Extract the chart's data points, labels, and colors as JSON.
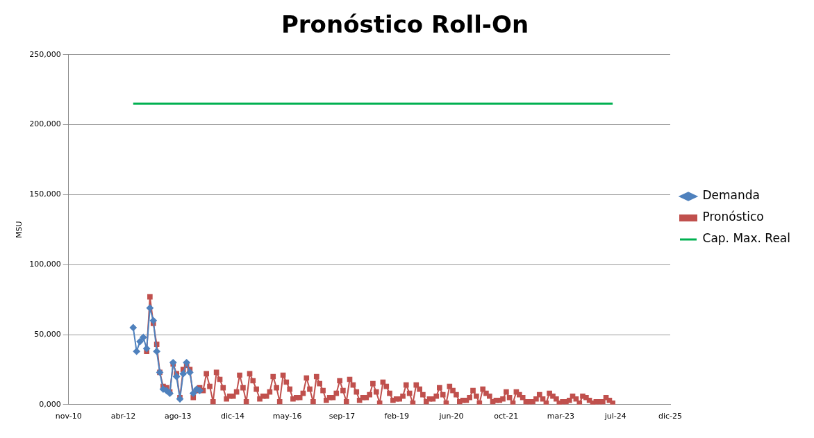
{
  "chart_data": {
    "type": "line",
    "title": "Pronóstico Roll-On",
    "ylabel": "MSU",
    "xlim": [
      "2010-11-18",
      "2025-12-09"
    ],
    "xticks": [
      {
        "value": "2010-11-18",
        "label": "nov-10"
      },
      {
        "value": "2012-04-01",
        "label": "abr-12"
      },
      {
        "value": "2013-08-14",
        "label": "ago-13"
      },
      {
        "value": "2014-12-27",
        "label": "dic-14"
      },
      {
        "value": "2016-05-10",
        "label": "may-16"
      },
      {
        "value": "2017-09-22",
        "label": "sep-17"
      },
      {
        "value": "2019-02-04",
        "label": "feb-19"
      },
      {
        "value": "2020-06-18",
        "label": "jun-20"
      },
      {
        "value": "2021-10-31",
        "label": "oct-21"
      },
      {
        "value": "2023-03-15",
        "label": "mar-23"
      },
      {
        "value": "2024-07-27",
        "label": "jul-24"
      },
      {
        "value": "2025-12-09",
        "label": "dic-25"
      }
    ],
    "ylim": [
      0,
      250000
    ],
    "yticks": [
      {
        "value": 0,
        "label": "0,000"
      },
      {
        "value": 50000,
        "label": "50,000"
      },
      {
        "value": 100000,
        "label": "100,000"
      },
      {
        "value": 150000,
        "label": "150,000"
      },
      {
        "value": 200000,
        "label": "200,000"
      },
      {
        "value": 250000,
        "label": "250,000"
      }
    ],
    "grid": "y",
    "legend": "right",
    "series": [
      {
        "name": "Demanda",
        "color": "#4f81bd",
        "marker": "diamond",
        "x": [
          "2012-07",
          "2012-08",
          "2012-09",
          "2012-10",
          "2012-11",
          "2012-12",
          "2013-01",
          "2013-02",
          "2013-03",
          "2013-04",
          "2013-05",
          "2013-06",
          "2013-07",
          "2013-08",
          "2013-09",
          "2013-10",
          "2013-11",
          "2013-12",
          "2014-01",
          "2014-02",
          "2014-03"
        ],
        "values": [
          55000,
          38000,
          45000,
          48000,
          40000,
          69000,
          60000,
          38000,
          23000,
          11000,
          10000,
          8000,
          30000,
          20000,
          4000,
          22000,
          30000,
          23000,
          8000,
          11000,
          10000
        ]
      },
      {
        "name": "Pronóstico",
        "color": "#c0504d",
        "marker": "square",
        "x": [
          "2012-11",
          "2012-12",
          "2013-01",
          "2013-02",
          "2013-03",
          "2013-04",
          "2013-05",
          "2013-06",
          "2013-07",
          "2013-08",
          "2013-09",
          "2013-10",
          "2013-11",
          "2013-12",
          "2014-01",
          "2014-02",
          "2014-03",
          "2014-04",
          "2014-05",
          "2014-06",
          "2014-07",
          "2014-08",
          "2014-09",
          "2014-10",
          "2014-11",
          "2014-12",
          "2015-01",
          "2015-02",
          "2015-03",
          "2015-04",
          "2015-05",
          "2015-06",
          "2015-07",
          "2015-08",
          "2015-09",
          "2015-10",
          "2015-11",
          "2015-12",
          "2016-01",
          "2016-02",
          "2016-03",
          "2016-04",
          "2016-05",
          "2016-06",
          "2016-07",
          "2016-08",
          "2016-09",
          "2016-10",
          "2016-11",
          "2016-12",
          "2017-01",
          "2017-02",
          "2017-03",
          "2017-04",
          "2017-05",
          "2017-06",
          "2017-07",
          "2017-08",
          "2017-09",
          "2017-10",
          "2017-11",
          "2017-12",
          "2018-01",
          "2018-02",
          "2018-03",
          "2018-04",
          "2018-05",
          "2018-06",
          "2018-07",
          "2018-08",
          "2018-09",
          "2018-10",
          "2018-11",
          "2018-12",
          "2019-01",
          "2019-02",
          "2019-03",
          "2019-04",
          "2019-05",
          "2019-06",
          "2019-07",
          "2019-08",
          "2019-09",
          "2019-10",
          "2019-11",
          "2019-12",
          "2020-01",
          "2020-02",
          "2020-03",
          "2020-04",
          "2020-05",
          "2020-06",
          "2020-07",
          "2020-08",
          "2020-09",
          "2020-10",
          "2020-11",
          "2020-12",
          "2021-01",
          "2021-02",
          "2021-03",
          "2021-04",
          "2021-05",
          "2021-06",
          "2021-07",
          "2021-08",
          "2021-09",
          "2021-10",
          "2021-11",
          "2021-12",
          "2022-01",
          "2022-02",
          "2022-03",
          "2022-04",
          "2022-05",
          "2022-06",
          "2022-07",
          "2022-08",
          "2022-09",
          "2022-10",
          "2022-11",
          "2022-12",
          "2023-01",
          "2023-02",
          "2023-03",
          "2023-04",
          "2023-05",
          "2023-06",
          "2023-07",
          "2023-08",
          "2023-09",
          "2023-10",
          "2023-11",
          "2023-12",
          "2024-01",
          "2024-02",
          "2024-03",
          "2024-04",
          "2024-05",
          "2024-06",
          "2024-07"
        ],
        "values": [
          38000,
          77000,
          58000,
          43000,
          23000,
          13000,
          12000,
          9000,
          29000,
          22000,
          5000,
          25000,
          28000,
          25000,
          5000,
          10000,
          12000,
          10000,
          22000,
          13000,
          2000,
          23000,
          18000,
          12000,
          4000,
          6000,
          6000,
          9000,
          21000,
          12000,
          2000,
          22000,
          17000,
          11000,
          4000,
          6000,
          6000,
          9000,
          20000,
          12000,
          2000,
          21000,
          16000,
          11000,
          4000,
          5000,
          5000,
          8000,
          19000,
          11000,
          2000,
          20000,
          15000,
          10000,
          3000,
          5000,
          5000,
          8000,
          17000,
          10000,
          2000,
          18000,
          14000,
          9000,
          3000,
          5000,
          5000,
          7000,
          15000,
          9000,
          1000,
          16000,
          13000,
          8000,
          3000,
          4000,
          4000,
          6000,
          14000,
          8000,
          1000,
          14000,
          11000,
          7000,
          2000,
          4000,
          4000,
          6000,
          12000,
          7000,
          1000,
          13000,
          10000,
          7000,
          2000,
          3000,
          3000,
          5000,
          10000,
          6000,
          1000,
          11000,
          8000,
          6000,
          2000,
          3000,
          3000,
          4000,
          9000,
          5000,
          1000,
          9000,
          7000,
          5000,
          2000,
          2000,
          2000,
          4000,
          7000,
          4000,
          1000,
          8000,
          6000,
          4000,
          1000,
          2000,
          2000,
          3000,
          6000,
          4000,
          1000,
          6000,
          5000,
          3000,
          1000,
          2000,
          2000,
          2000,
          5000,
          3000,
          1000
        ]
      },
      {
        "name": "Cap. Max. Real",
        "color": "#00b050",
        "marker": "none",
        "x": [
          "2012-07",
          "2024-07"
        ],
        "values": [
          215000,
          215000
        ]
      }
    ]
  }
}
